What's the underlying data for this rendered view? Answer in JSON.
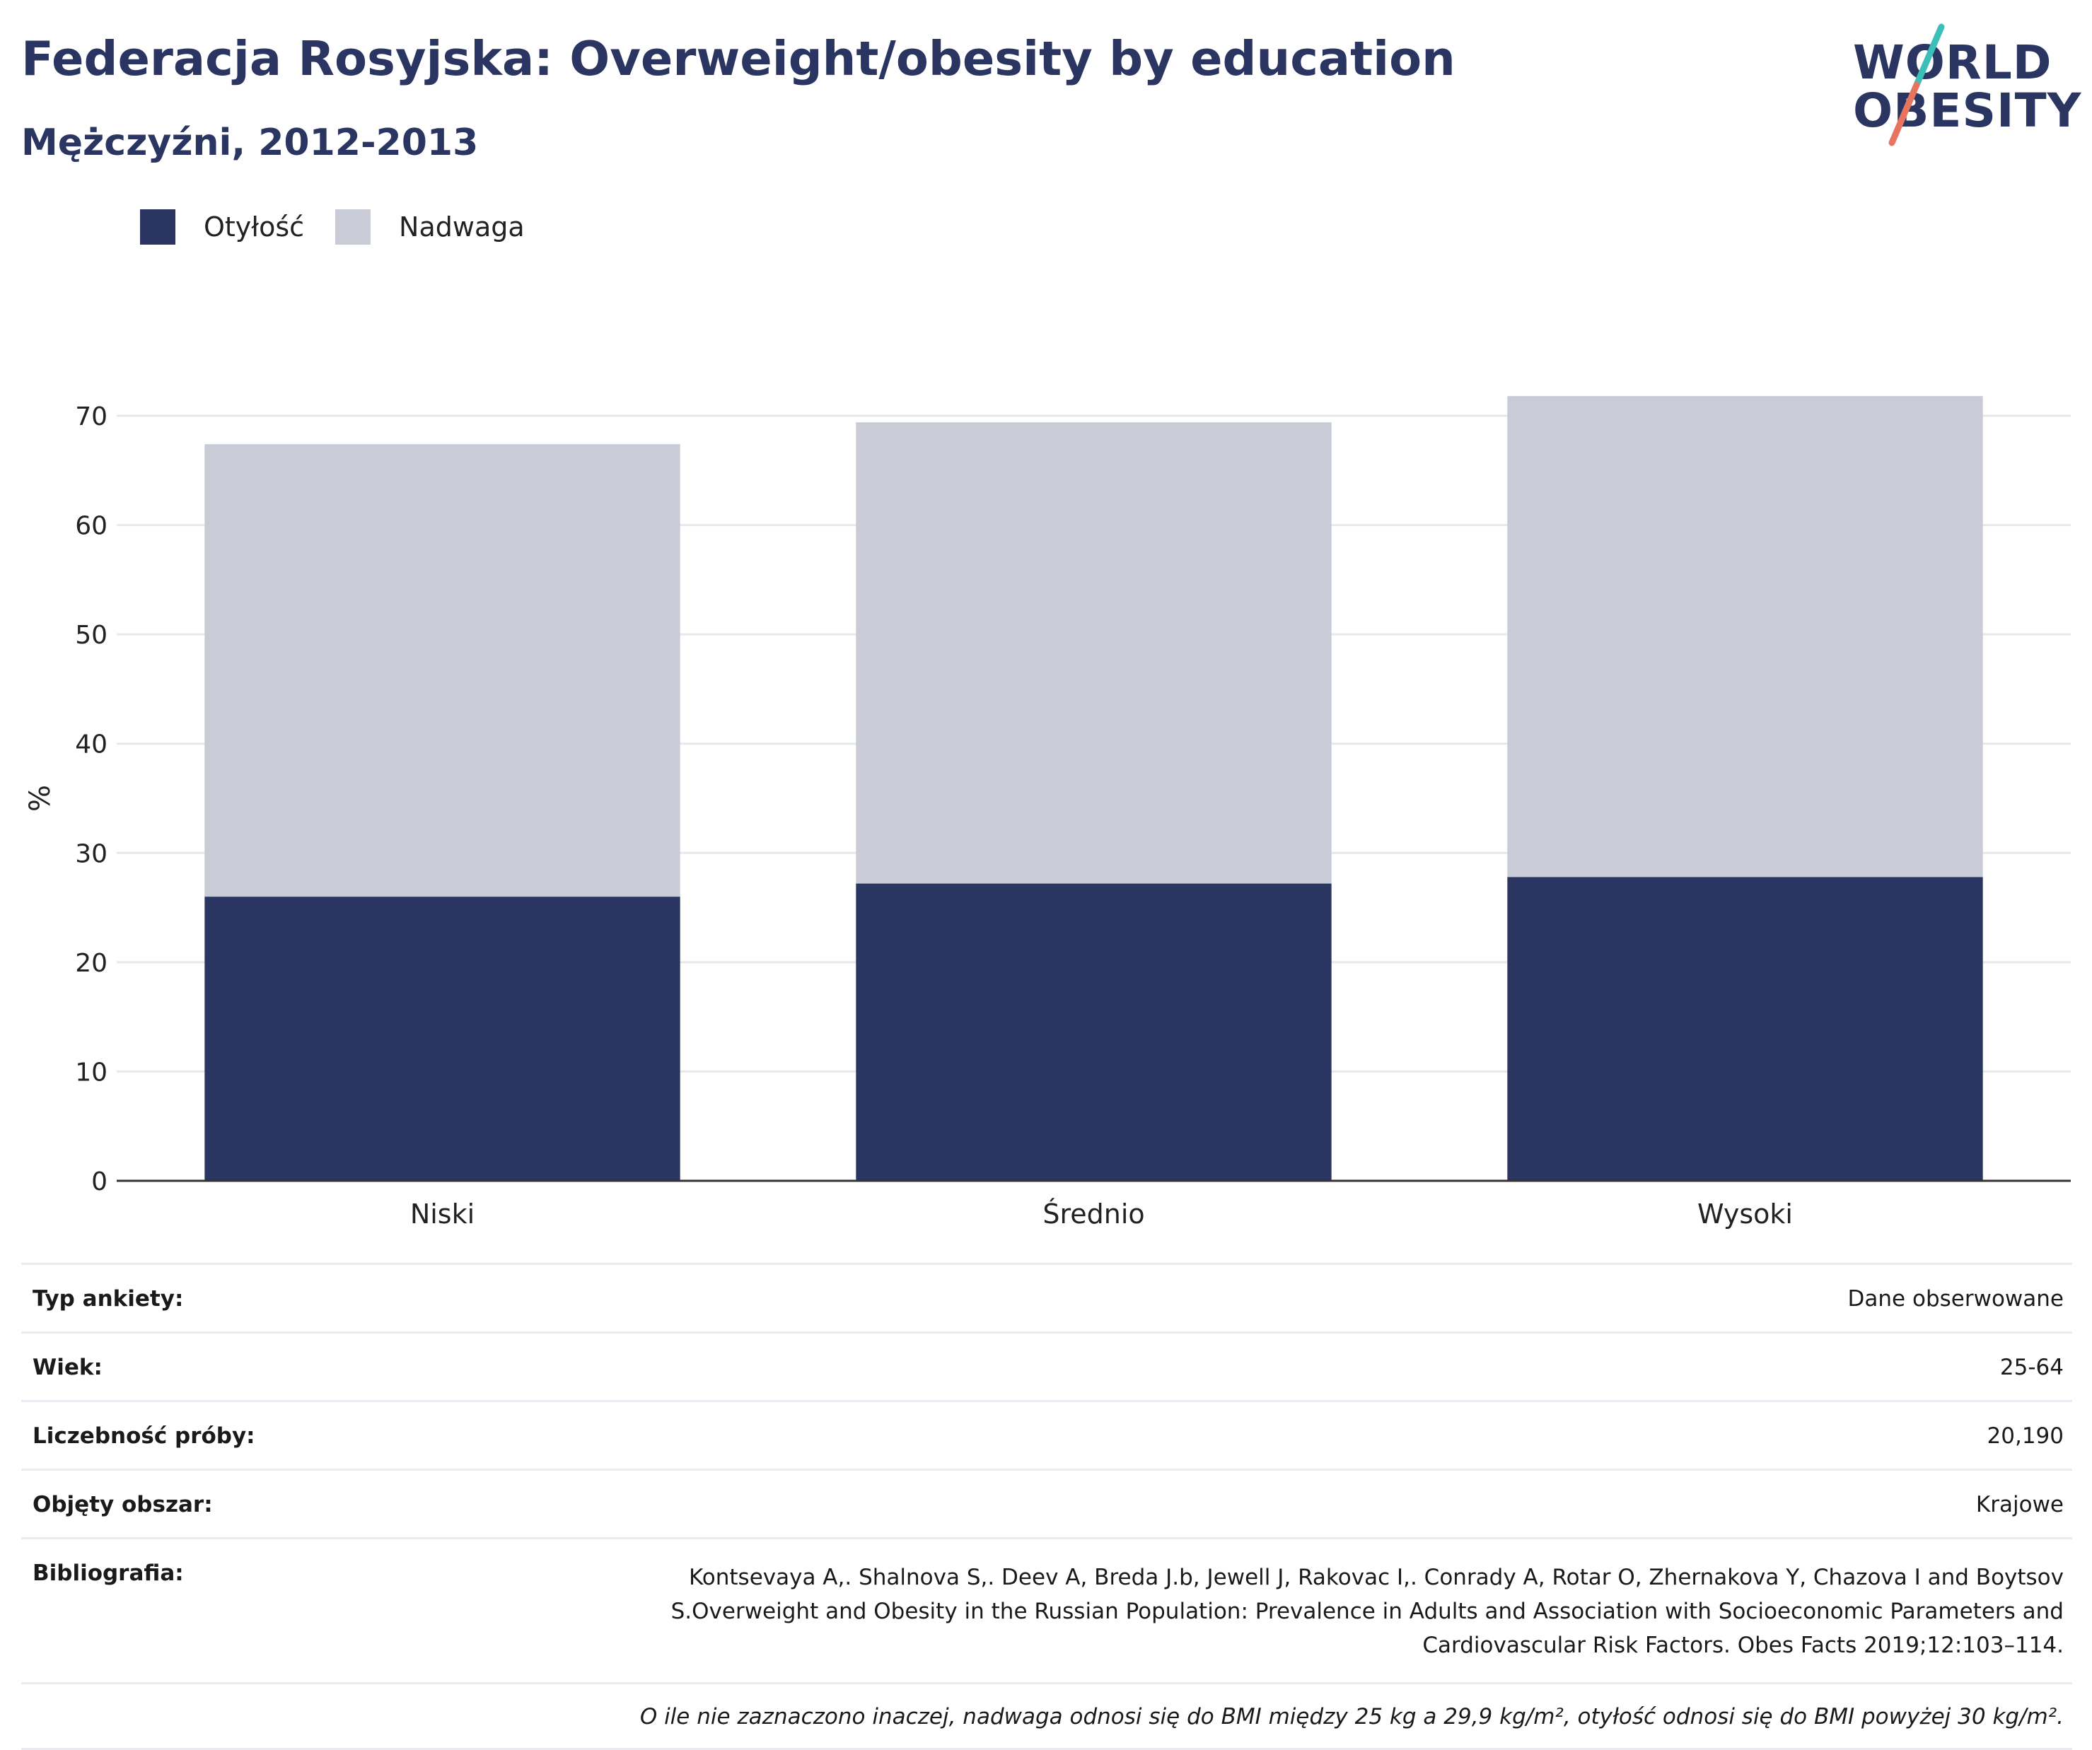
{
  "header": {
    "title": "Federacja Rosyjska: Overweight/obesity by education",
    "subtitle": "Mężczyźni, 2012-2013"
  },
  "logo": {
    "line1": "WORLD",
    "line2": "OBESITY"
  },
  "legend": {
    "items": [
      {
        "label": "Otyłość",
        "color": "#2a3562"
      },
      {
        "label": "Nadwaga",
        "color": "#c9cbd6"
      }
    ]
  },
  "chart_data": {
    "type": "bar",
    "stacked": true,
    "categories": [
      "Niski",
      "Średnio",
      "Wysoki"
    ],
    "series": [
      {
        "name": "Otyłość",
        "values": [
          26.0,
          27.2,
          27.8
        ],
        "color": "#2a3562"
      },
      {
        "name": "Nadwaga",
        "values": [
          41.4,
          42.2,
          44.0
        ],
        "color": "#c9cbd6"
      }
    ],
    "ylabel": "%",
    "ylim": [
      0,
      70
    ],
    "yticks": [
      0,
      10,
      20,
      30,
      40,
      50,
      60,
      70
    ],
    "grid": true
  },
  "meta": {
    "survey_type": {
      "label": "Typ ankiety:",
      "value": "Dane obserwowane"
    },
    "age": {
      "label": "Wiek:",
      "value": "25-64"
    },
    "sample": {
      "label": "Liczebność próby:",
      "value": "20,190"
    },
    "area": {
      "label": "Objęty obszar:",
      "value": "Krajowe"
    },
    "bibliography": {
      "label": "Bibliografia:",
      "value": "Kontsevaya A,. Shalnova S,. Deev A, Breda J.b, Jewell J, Rakovac I,. Conrady A, Rotar O, Zhernakova Y, Chazova I and Boytsov S.Overweight and Obesity in the Russian Population: Prevalence in Adults and Association with Socioeconomic Parameters and Cardiovascular Risk Factors. Obes Facts 2019;12:103–114."
    },
    "footnote": "O ile nie zaznaczono inaczej, nadwaga odnosi się do BMI między 25 kg a 29,9 kg/m², otyłość odnosi się do BMI powyżej 30 kg/m²."
  }
}
